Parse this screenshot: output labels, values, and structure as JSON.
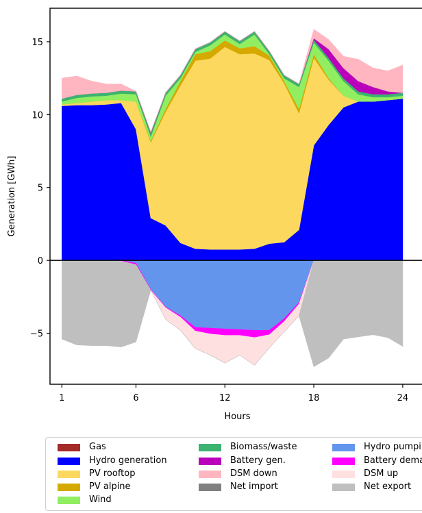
{
  "chart_data": {
    "type": "area",
    "title": "",
    "xlabel": "Hours",
    "ylabel": "Generation [GWh]",
    "xlim": [
      0.2,
      25.3
    ],
    "ylim": [
      -8.5,
      17.3
    ],
    "xticks": [
      1,
      6,
      12,
      18,
      24
    ],
    "yticks": [
      -5,
      0,
      5,
      10,
      15
    ],
    "x": [
      1,
      2,
      3,
      4,
      5,
      6,
      7,
      8,
      9,
      10,
      11,
      12,
      13,
      14,
      15,
      16,
      17,
      18,
      19,
      20,
      21,
      22,
      23,
      24
    ],
    "positive_series": [
      {
        "name": "Hydro generation",
        "color": "#0000ff",
        "values": [
          10.6,
          10.65,
          10.65,
          10.7,
          10.8,
          9.0,
          2.9,
          2.4,
          1.2,
          0.8,
          0.75,
          0.75,
          0.75,
          0.8,
          1.15,
          1.25,
          2.1,
          7.9,
          9.3,
          10.5,
          10.9,
          10.9,
          11.0,
          11.1
        ]
      },
      {
        "name": "PV rooftop",
        "color": "#fcd95e",
        "values": [
          0.1,
          0.15,
          0.25,
          0.3,
          0.2,
          1.9,
          5.2,
          7.8,
          10.8,
          12.9,
          13.1,
          13.9,
          13.4,
          13.4,
          12.6,
          10.9,
          8.0,
          6.0,
          3.1,
          0.8,
          0,
          0,
          0,
          0
        ]
      },
      {
        "name": "PV alpine",
        "color": "#d4a900",
        "values": [
          0,
          0,
          0,
          0,
          0,
          0,
          0.1,
          0.2,
          0.3,
          0.45,
          0.5,
          0.45,
          0.4,
          0.5,
          0.3,
          0.15,
          0.3,
          0.25,
          0.1,
          0,
          0,
          0,
          0,
          0
        ]
      },
      {
        "name": "Wind",
        "color": "#90ee60",
        "values": [
          0.2,
          0.35,
          0.35,
          0.3,
          0.45,
          0.5,
          0.3,
          0.9,
          0.2,
          0.15,
          0.4,
          0.4,
          0.3,
          0.8,
          0.1,
          0.2,
          1.5,
          0.8,
          1.2,
          1.0,
          0.5,
          0.3,
          0.2,
          0.2
        ]
      },
      {
        "name": "Biomass/waste",
        "color": "#3cb371",
        "values": [
          0.2,
          0.2,
          0.2,
          0.2,
          0.2,
          0.2,
          0.2,
          0.2,
          0.2,
          0.2,
          0.2,
          0.2,
          0.2,
          0.2,
          0.2,
          0.2,
          0.2,
          0.2,
          0.2,
          0.2,
          0.2,
          0.2,
          0.2,
          0.2
        ]
      },
      {
        "name": "Battery gen.",
        "color": "#bb00bb",
        "values": [
          0,
          0,
          0,
          0,
          0,
          0,
          0,
          0,
          0,
          0,
          0,
          0,
          0,
          0,
          0,
          0,
          0,
          0.1,
          0.6,
          0.7,
          0.7,
          0.5,
          0.2,
          0
        ]
      },
      {
        "name": "Gas",
        "color": "#a52a2a",
        "values": [
          0,
          0,
          0,
          0,
          0,
          0,
          0,
          0,
          0,
          0,
          0,
          0,
          0,
          0,
          0,
          0,
          0,
          0,
          0,
          0,
          0,
          0,
          0,
          0
        ]
      },
      {
        "name": "Net import",
        "color": "#808080",
        "values": [
          0,
          0,
          0,
          0,
          0,
          0,
          0.1,
          0,
          0,
          0,
          0,
          0,
          0,
          0,
          0,
          0,
          0,
          0,
          0,
          0,
          0,
          0,
          0,
          0
        ]
      },
      {
        "name": "DSM down",
        "color": "#ffb6c1",
        "values": [
          1.4,
          1.3,
          0.85,
          0.6,
          0.45,
          0,
          0,
          0,
          0,
          0,
          0,
          0,
          0,
          0,
          0,
          0,
          0,
          0.6,
          0.65,
          0.8,
          1.5,
          1.3,
          1.4,
          1.9
        ]
      }
    ],
    "negative_series": [
      {
        "name": "Hydro pumping",
        "color": "#6495ed",
        "values": [
          0,
          0,
          0,
          0,
          0,
          -0.2,
          -2.0,
          -3.2,
          -3.8,
          -4.6,
          -4.65,
          -4.7,
          -4.75,
          -4.8,
          -4.8,
          -4.0,
          -2.9,
          0,
          0,
          0,
          0,
          0,
          0,
          0
        ]
      },
      {
        "name": "Battery demand",
        "color": "#ff00ff",
        "values": [
          0,
          0,
          0,
          0,
          -0.05,
          -0.1,
          -0.05,
          -0.05,
          -0.1,
          -0.25,
          -0.4,
          -0.45,
          -0.4,
          -0.5,
          -0.3,
          -0.2,
          -0.1,
          0,
          0,
          0,
          0,
          0,
          0,
          0
        ]
      },
      {
        "name": "DSM up",
        "color": "#ffe0e0",
        "values": [
          0,
          0,
          0,
          0,
          0,
          0,
          0,
          -0.8,
          -0.9,
          -1.2,
          -1.45,
          -1.9,
          -1.35,
          -1.9,
          -0.9,
          -0.7,
          -0.8,
          0,
          0,
          0,
          0,
          0,
          0,
          0
        ]
      },
      {
        "name": "Net export",
        "color": "#bfbfbf",
        "values": [
          -5.4,
          -5.8,
          -5.85,
          -5.85,
          -5.9,
          -5.3,
          0,
          0,
          0,
          0,
          0,
          0,
          0,
          0,
          0,
          0,
          0,
          -7.3,
          -6.7,
          -5.4,
          -5.25,
          -5.1,
          -5.3,
          -5.9
        ]
      }
    ],
    "legend": {
      "placement": "below",
      "columns": [
        [
          "Gas",
          "Hydro generation",
          "PV rooftop",
          "PV alpine",
          "Wind"
        ],
        [
          "Biomass/waste",
          "Battery gen.",
          "DSM down",
          "Net import"
        ],
        [
          "Hydro pumping",
          "Battery demand",
          "DSM up",
          "Net export"
        ]
      ]
    },
    "grid": false
  }
}
